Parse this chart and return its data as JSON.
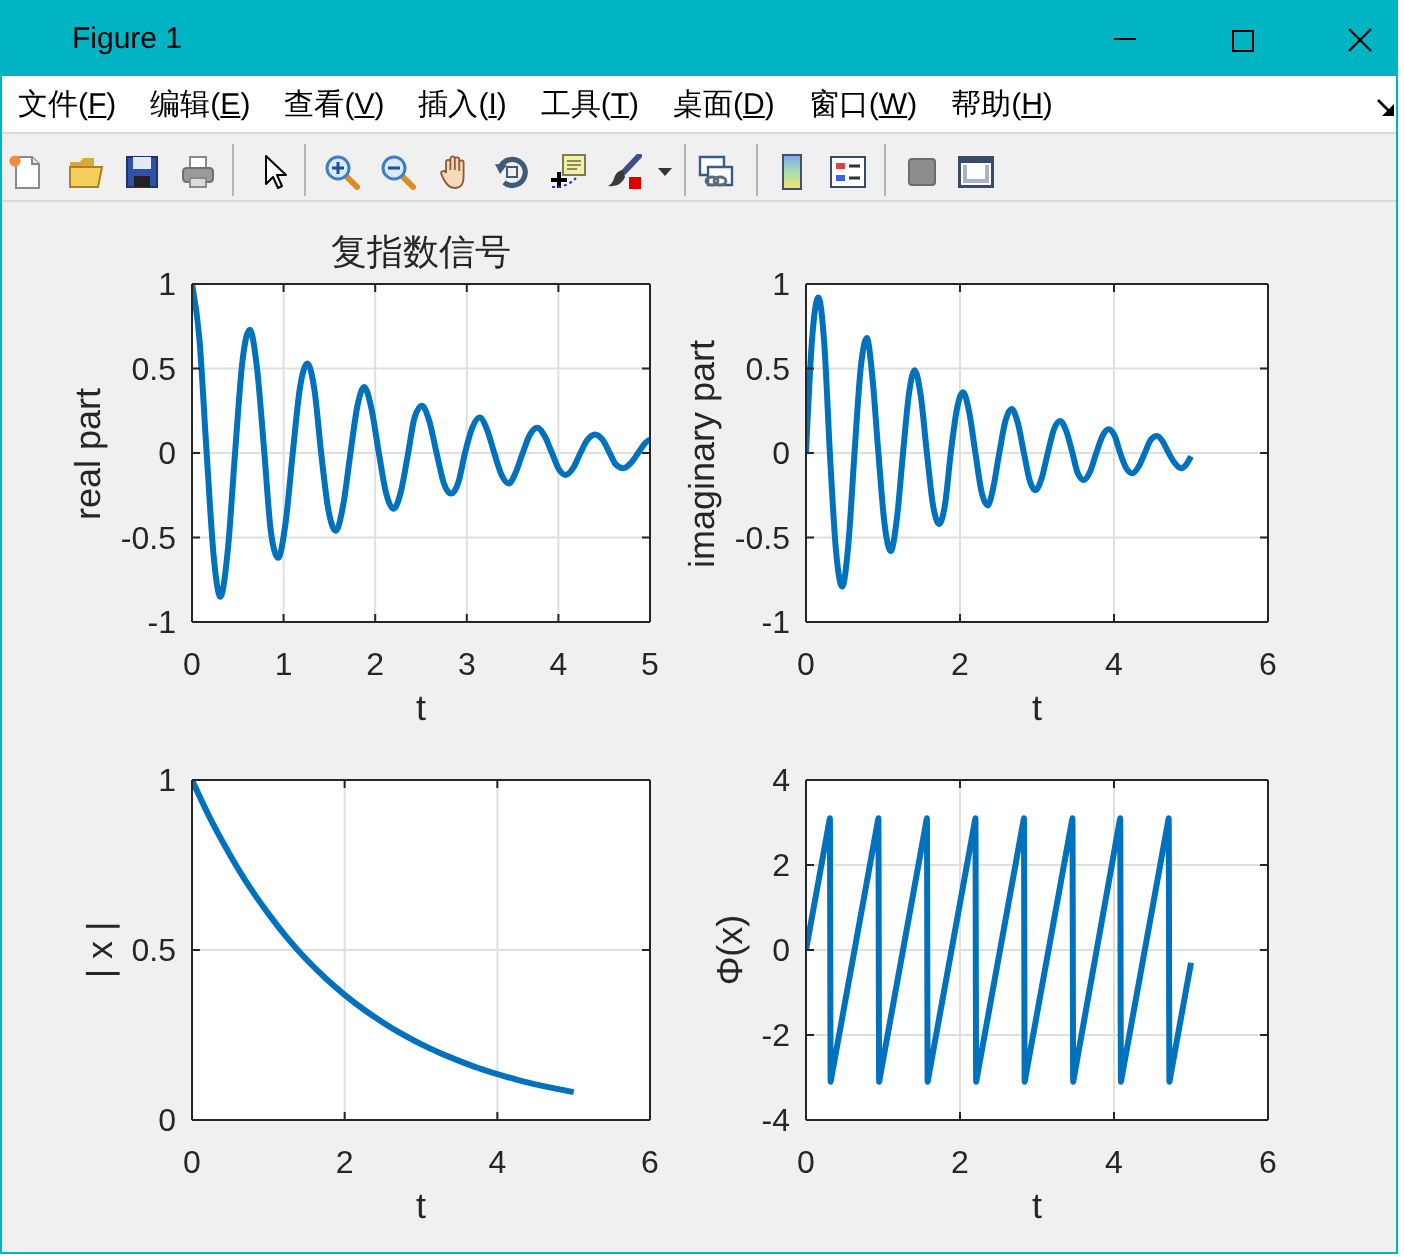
{
  "chart_data": [
    {
      "type": "other",
      "title": "Figure 1",
      "annotations": [
        "文件(F)",
        "编辑(E)",
        "查看(V)",
        "插入(I)",
        "工具(T)",
        "桌面(D)",
        "窗口(W)",
        "帮助(H)"
      ]
    },
    {
      "type": "line",
      "title": "复指数信号",
      "xlabel": "t",
      "ylabel": "real part",
      "color": "#0072bd",
      "grid": true,
      "xlim": [
        0,
        5
      ],
      "xticks": [
        0,
        1,
        2,
        3,
        4,
        5
      ],
      "ylim": [
        -1,
        1
      ],
      "yticks": [
        -1,
        -0.5,
        0,
        0.5,
        1
      ],
      "x": [
        0,
        0.08,
        0.16,
        0.24,
        0.31,
        0.39,
        0.47,
        0.55,
        0.63,
        0.71,
        0.79,
        0.86,
        0.94,
        1.02,
        1.1,
        1.18,
        1.26,
        1.34,
        1.41,
        1.49,
        1.57,
        1.65,
        1.73,
        1.81,
        1.88,
        1.96,
        2.04,
        2.12,
        2.2,
        2.28,
        2.36,
        2.43,
        2.51,
        2.59,
        2.67,
        2.75,
        2.83,
        2.91,
        2.98,
        3.06,
        3.14,
        3.22,
        3.3,
        3.38,
        3.46,
        3.53,
        3.61,
        3.69,
        3.77,
        3.85,
        3.93,
        4.01,
        4.08,
        4.16,
        4.24,
        4.32,
        4.4,
        4.48,
        4.56,
        4.63,
        4.71,
        4.79,
        4.87,
        4.95,
        5
      ],
      "values": [
        1,
        0.68,
        0,
        -0.63,
        -0.85,
        -0.58,
        0,
        0.54,
        0.73,
        0.5,
        0,
        -0.46,
        -0.62,
        -0.42,
        0,
        0.39,
        0.53,
        0.36,
        0,
        -0.34,
        -0.46,
        -0.31,
        0,
        0.29,
        0.39,
        0.26,
        0,
        -0.24,
        -0.33,
        -0.23,
        0,
        0.21,
        0.28,
        0.19,
        0,
        -0.18,
        -0.24,
        -0.17,
        0,
        0.15,
        0.21,
        0.14,
        0,
        -0.13,
        -0.18,
        -0.12,
        0,
        0.11,
        0.15,
        0.1,
        0,
        -0.1,
        -0.13,
        -0.09,
        0,
        0.08,
        0.11,
        0.08,
        0,
        -0.07,
        -0.09,
        -0.06,
        0,
        0.06,
        0.08
      ]
    },
    {
      "type": "line",
      "xlabel": "t",
      "ylabel": "imaginary part",
      "color": "#0072bd",
      "grid": true,
      "xlim": [
        0,
        6
      ],
      "xticks": [
        0,
        2,
        4,
        6
      ],
      "ylim": [
        -1,
        1
      ],
      "yticks": [
        -1,
        -0.5,
        0,
        0.5,
        1
      ],
      "x": [
        0,
        0.08,
        0.16,
        0.24,
        0.31,
        0.39,
        0.47,
        0.55,
        0.63,
        0.71,
        0.79,
        0.86,
        0.94,
        1.02,
        1.1,
        1.18,
        1.26,
        1.34,
        1.41,
        1.49,
        1.57,
        1.65,
        1.73,
        1.81,
        1.88,
        1.96,
        2.04,
        2.12,
        2.2,
        2.28,
        2.36,
        2.43,
        2.51,
        2.59,
        2.67,
        2.75,
        2.83,
        2.91,
        2.98,
        3.06,
        3.14,
        3.22,
        3.3,
        3.38,
        3.46,
        3.53,
        3.61,
        3.69,
        3.77,
        3.85,
        3.93,
        4.01,
        4.08,
        4.16,
        4.24,
        4.32,
        4.4,
        4.48,
        4.56,
        4.63,
        4.71,
        4.79,
        4.87,
        4.95,
        5
      ],
      "values": [
        0,
        0.68,
        0.92,
        0.63,
        0,
        -0.58,
        -0.79,
        -0.54,
        0,
        0.5,
        0.68,
        0.46,
        0,
        -0.42,
        -0.58,
        -0.39,
        0,
        0.36,
        0.49,
        0.34,
        0,
        -0.31,
        -0.42,
        -0.29,
        0,
        0.26,
        0.36,
        0.24,
        0,
        -0.23,
        -0.31,
        -0.21,
        0,
        0.19,
        0.26,
        0.18,
        0,
        -0.17,
        -0.22,
        -0.15,
        0,
        0.14,
        0.19,
        0.13,
        0,
        -0.12,
        -0.16,
        -0.11,
        0,
        0.1,
        0.14,
        0.1,
        0,
        -0.09,
        -0.12,
        -0.08,
        0,
        0.08,
        0.1,
        0.07,
        0,
        -0.06,
        -0.09,
        -0.06,
        -0.02
      ]
    },
    {
      "type": "line",
      "xlabel": "t",
      "ylabel": "| x |",
      "color": "#0072bd",
      "grid": true,
      "xlim": [
        0,
        6
      ],
      "xticks": [
        0,
        2,
        4,
        6
      ],
      "ylim": [
        0,
        1
      ],
      "yticks": [
        0,
        0.5,
        1
      ],
      "x": [
        0,
        0.25,
        0.5,
        0.75,
        1,
        1.25,
        1.5,
        1.75,
        2,
        2.25,
        2.5,
        2.75,
        3,
        3.25,
        3.5,
        3.75,
        4,
        4.25,
        4.5,
        4.75,
        5
      ],
      "values": [
        1,
        0.882,
        0.779,
        0.687,
        0.607,
        0.535,
        0.472,
        0.417,
        0.368,
        0.325,
        0.287,
        0.253,
        0.223,
        0.197,
        0.174,
        0.153,
        0.135,
        0.119,
        0.105,
        0.093,
        0.082
      ]
    },
    {
      "type": "line",
      "xlabel": "t",
      "ylabel": "Φ(x)",
      "color": "#0072bd",
      "grid": true,
      "xlim": [
        0,
        6
      ],
      "xticks": [
        0,
        2,
        4,
        6
      ],
      "ylim": [
        -4,
        4
      ],
      "yticks": [
        -4,
        -2,
        0,
        2,
        4
      ],
      "x": [
        0,
        0.3,
        0.31,
        0.32,
        0.33,
        0.93,
        0.94,
        0.95,
        0.96,
        1.56,
        1.57,
        1.58,
        1.59,
        2.19,
        2.2,
        2.21,
        2.22,
        2.82,
        2.83,
        2.84,
        2.85,
        3.45,
        3.46,
        3.47,
        3.48,
        4.07,
        4.08,
        4.09,
        4.1,
        4.7,
        4.71,
        4.72,
        4.73,
        5
      ],
      "values": [
        0,
        3,
        3.1,
        -3.1,
        -3,
        3,
        3.1,
        -3.1,
        -3,
        3,
        3.1,
        -3.1,
        -3,
        3,
        3.1,
        -3.1,
        -3,
        3,
        3.1,
        -3.1,
        -3,
        3,
        3.1,
        -3.1,
        -3,
        3,
        3.1,
        -3.1,
        -3,
        3,
        3.1,
        -3.1,
        -3,
        -0.3
      ]
    }
  ]
}
